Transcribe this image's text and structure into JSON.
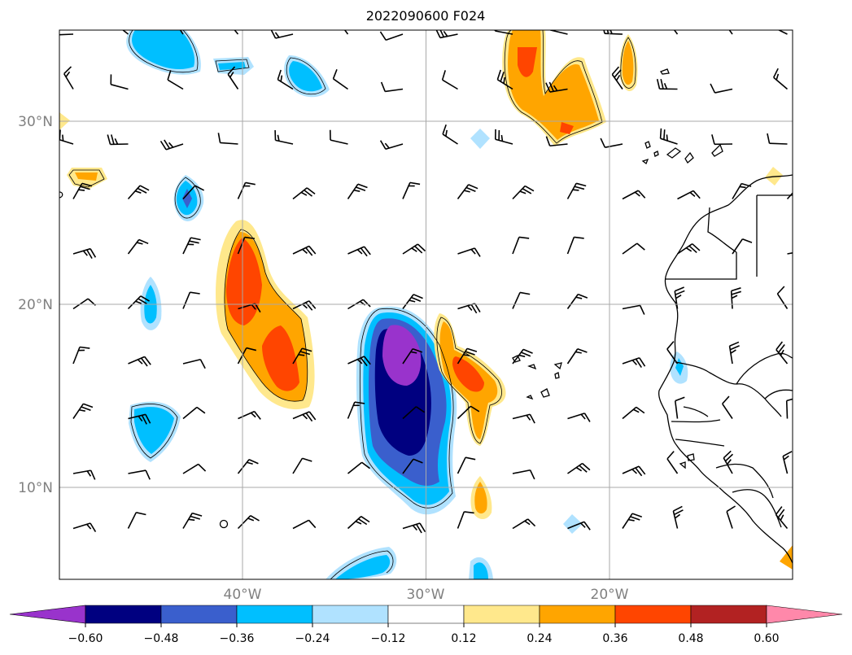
{
  "title": "2022090600 F024",
  "axes": {
    "lat_labels": [
      "30°N",
      "20°N",
      "10°N"
    ],
    "lon_labels": [
      "40°W",
      "30°W",
      "20°W"
    ],
    "lon_range": [
      -50,
      -10
    ],
    "lat_range": [
      5,
      35
    ],
    "grid": true
  },
  "colorbar": {
    "levels": [
      "-0.60",
      "-0.48",
      "-0.36",
      "-0.24",
      "-0.12",
      "0.12",
      "0.24",
      "0.36",
      "0.48",
      "0.60"
    ],
    "colors": [
      "#9933cc",
      "#000080",
      "#3a5fcd",
      "#00bfff",
      "#b0e2ff",
      "#ffffff",
      "#ffe88c",
      "#ffa500",
      "#ff4500",
      "#b22222",
      "#ff88aa"
    ],
    "extend": "both",
    "orientation": "horizontal"
  },
  "fill_colors": {
    "lightblue": "#b0e2ff",
    "cyan": "#00bfff",
    "royal": "#3a5fcd",
    "navy": "#000080",
    "purple": "#9933cc",
    "yellow": "#ffe88c",
    "orange": "#ffa500",
    "redorange": "#ff4500"
  }
}
